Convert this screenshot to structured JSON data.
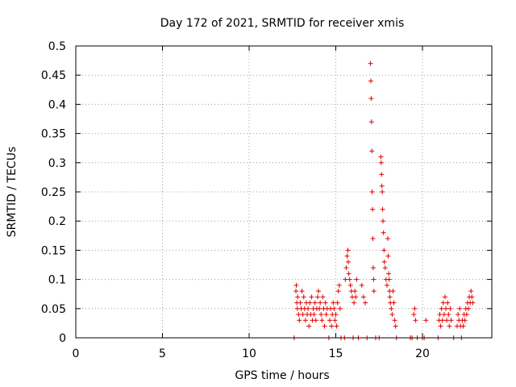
{
  "chart_data": {
    "type": "scatter",
    "title": "Day 172 of 2021, SRMTID for receiver xmis",
    "xlabel": "GPS time / hours",
    "ylabel": "SRMTID / TECUs",
    "xlim": [
      0,
      24
    ],
    "ylim": [
      0,
      0.5
    ],
    "xticks": [
      0,
      5,
      10,
      15,
      20
    ],
    "yticks": [
      0,
      0.05,
      0.1,
      0.15,
      0.2,
      0.25,
      0.3,
      0.35,
      0.4,
      0.45,
      0.5
    ],
    "xtick_labels": [
      "0",
      "5",
      "10",
      "15",
      "20"
    ],
    "ytick_labels": [
      "0",
      "0.05",
      "0.1",
      "0.15",
      "0.2",
      "0.25",
      "0.3",
      "0.35",
      "0.4",
      "0.45",
      "0.5"
    ],
    "grid": true,
    "marker": "plus",
    "color": "#e00000",
    "series": [
      {
        "name": "SRMTID",
        "points": [
          [
            12.6,
            0.0
          ],
          [
            12.7,
            0.08
          ],
          [
            12.72,
            0.09
          ],
          [
            12.75,
            0.06
          ],
          [
            12.78,
            0.05
          ],
          [
            12.8,
            0.07
          ],
          [
            12.85,
            0.04
          ],
          [
            12.9,
            0.03
          ],
          [
            12.95,
            0.06
          ],
          [
            13.0,
            0.05
          ],
          [
            13.05,
            0.08
          ],
          [
            13.1,
            0.04
          ],
          [
            13.15,
            0.07
          ],
          [
            13.2,
            0.05
          ],
          [
            13.25,
            0.03
          ],
          [
            13.3,
            0.06
          ],
          [
            13.35,
            0.04
          ],
          [
            13.4,
            0.05
          ],
          [
            13.45,
            0.02
          ],
          [
            13.5,
            0.06
          ],
          [
            13.55,
            0.04
          ],
          [
            13.6,
            0.07
          ],
          [
            13.65,
            0.03
          ],
          [
            13.7,
            0.05
          ],
          [
            13.75,
            0.04
          ],
          [
            13.8,
            0.06
          ],
          [
            13.85,
            0.03
          ],
          [
            13.9,
            0.05
          ],
          [
            13.95,
            0.07
          ],
          [
            14.0,
            0.08
          ],
          [
            14.05,
            0.05
          ],
          [
            14.1,
            0.06
          ],
          [
            14.15,
            0.04
          ],
          [
            14.2,
            0.03
          ],
          [
            14.25,
            0.07
          ],
          [
            14.3,
            0.05
          ],
          [
            14.35,
            0.02
          ],
          [
            14.4,
            0.06
          ],
          [
            14.45,
            0.04
          ],
          [
            14.5,
            0.05
          ],
          [
            14.6,
            0.0
          ],
          [
            14.65,
            0.03
          ],
          [
            14.7,
            0.05
          ],
          [
            14.75,
            0.02
          ],
          [
            14.8,
            0.04
          ],
          [
            14.85,
            0.06
          ],
          [
            14.9,
            0.05
          ],
          [
            14.95,
            0.03
          ],
          [
            15.0,
            0.04
          ],
          [
            15.05,
            0.02
          ],
          [
            15.1,
            0.06
          ],
          [
            15.15,
            0.08
          ],
          [
            15.2,
            0.09
          ],
          [
            15.25,
            0.05
          ],
          [
            15.3,
            0.0
          ],
          [
            15.5,
            0.0
          ],
          [
            15.55,
            0.1
          ],
          [
            15.6,
            0.12
          ],
          [
            15.65,
            0.14
          ],
          [
            15.7,
            0.15
          ],
          [
            15.72,
            0.13
          ],
          [
            15.75,
            0.11
          ],
          [
            15.8,
            0.1
          ],
          [
            15.85,
            0.09
          ],
          [
            15.9,
            0.08
          ],
          [
            15.95,
            0.07
          ],
          [
            16.0,
            0.0
          ],
          [
            16.05,
            0.06
          ],
          [
            16.1,
            0.08
          ],
          [
            16.15,
            0.07
          ],
          [
            16.2,
            0.1
          ],
          [
            16.3,
            0.0
          ],
          [
            16.5,
            0.09
          ],
          [
            16.6,
            0.07
          ],
          [
            16.7,
            0.06
          ],
          [
            16.8,
            0.0
          ],
          [
            17.0,
            0.47
          ],
          [
            17.02,
            0.44
          ],
          [
            17.04,
            0.41
          ],
          [
            17.06,
            0.37
          ],
          [
            17.08,
            0.32
          ],
          [
            17.1,
            0.25
          ],
          [
            17.12,
            0.22
          ],
          [
            17.14,
            0.17
          ],
          [
            17.16,
            0.12
          ],
          [
            17.18,
            0.1
          ],
          [
            17.2,
            0.08
          ],
          [
            17.3,
            0.0
          ],
          [
            17.5,
            0.0
          ],
          [
            17.6,
            0.31
          ],
          [
            17.62,
            0.3
          ],
          [
            17.64,
            0.28
          ],
          [
            17.66,
            0.26
          ],
          [
            17.68,
            0.25
          ],
          [
            17.7,
            0.22
          ],
          [
            17.72,
            0.2
          ],
          [
            17.75,
            0.18
          ],
          [
            17.78,
            0.15
          ],
          [
            17.8,
            0.13
          ],
          [
            17.85,
            0.12
          ],
          [
            17.9,
            0.1
          ],
          [
            17.95,
            0.09
          ],
          [
            18.0,
            0.17
          ],
          [
            18.02,
            0.14
          ],
          [
            18.05,
            0.11
          ],
          [
            18.08,
            0.1
          ],
          [
            18.1,
            0.08
          ],
          [
            18.12,
            0.07
          ],
          [
            18.15,
            0.06
          ],
          [
            18.2,
            0.05
          ],
          [
            18.25,
            0.04
          ],
          [
            18.3,
            0.08
          ],
          [
            18.35,
            0.06
          ],
          [
            18.4,
            0.03
          ],
          [
            18.45,
            0.02
          ],
          [
            18.5,
            0.0
          ],
          [
            19.3,
            0.0
          ],
          [
            19.4,
            0.0
          ],
          [
            19.5,
            0.04
          ],
          [
            19.55,
            0.05
          ],
          [
            19.6,
            0.03
          ],
          [
            19.7,
            0.0
          ],
          [
            20.0,
            0.0
          ],
          [
            20.1,
            0.0
          ],
          [
            20.2,
            0.03
          ],
          [
            20.9,
            0.0
          ],
          [
            20.95,
            0.03
          ],
          [
            21.0,
            0.04
          ],
          [
            21.05,
            0.02
          ],
          [
            21.1,
            0.05
          ],
          [
            21.15,
            0.03
          ],
          [
            21.2,
            0.06
          ],
          [
            21.25,
            0.04
          ],
          [
            21.3,
            0.07
          ],
          [
            21.35,
            0.05
          ],
          [
            21.4,
            0.03
          ],
          [
            21.45,
            0.06
          ],
          [
            21.5,
            0.04
          ],
          [
            21.55,
            0.02
          ],
          [
            21.6,
            0.05
          ],
          [
            21.65,
            0.03
          ],
          [
            21.8,
            0.0
          ],
          [
            22.0,
            0.02
          ],
          [
            22.05,
            0.04
          ],
          [
            22.1,
            0.03
          ],
          [
            22.15,
            0.05
          ],
          [
            22.2,
            0.02
          ],
          [
            22.25,
            0.0
          ],
          [
            22.3,
            0.03
          ],
          [
            22.35,
            0.02
          ],
          [
            22.4,
            0.04
          ],
          [
            22.45,
            0.03
          ],
          [
            22.5,
            0.05
          ],
          [
            22.55,
            0.04
          ],
          [
            22.6,
            0.06
          ],
          [
            22.65,
            0.05
          ],
          [
            22.7,
            0.07
          ],
          [
            22.75,
            0.06
          ],
          [
            22.8,
            0.08
          ],
          [
            22.85,
            0.07
          ],
          [
            22.9,
            0.06
          ]
        ]
      }
    ]
  }
}
